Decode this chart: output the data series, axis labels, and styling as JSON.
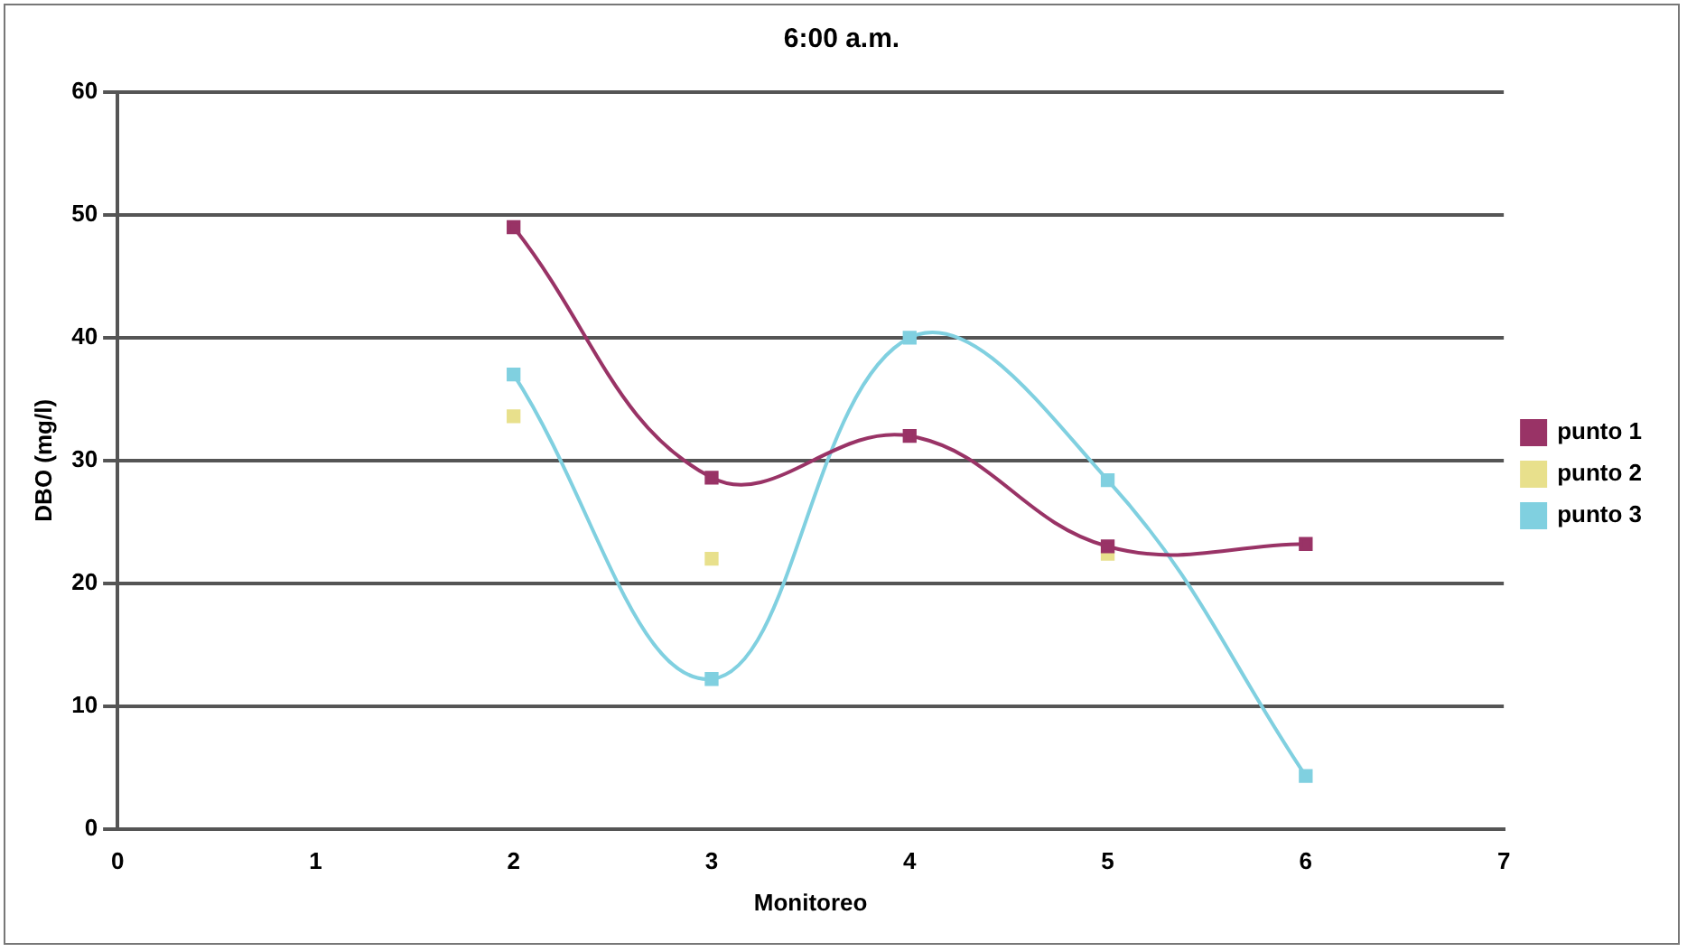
{
  "chart_data": {
    "type": "line",
    "title": "6:00 a.m.",
    "xlabel": "Monitoreo",
    "ylabel": "DBO (mg/l)",
    "x": [
      2,
      3,
      4,
      5,
      6
    ],
    "series": [
      {
        "name": "punto 1",
        "color": "#993366",
        "values": [
          49,
          28.6,
          32,
          23,
          23.2
        ]
      },
      {
        "name": "punto 2",
        "type": "scatter",
        "color": "#e8e08c",
        "x": [
          2,
          3,
          4,
          5
        ],
        "values": [
          33.6,
          22,
          null,
          22.4
        ]
      },
      {
        "name": "punto 3",
        "color": "#80d0e0",
        "values": [
          37,
          12.2,
          40,
          28.4,
          4.3
        ]
      }
    ],
    "xlim": [
      0,
      7
    ],
    "xticks": [
      0,
      1,
      2,
      3,
      4,
      5,
      6,
      7
    ],
    "ylim": [
      0,
      60
    ],
    "yticks": [
      0,
      10,
      20,
      30,
      40,
      50,
      60
    ],
    "grid": "y",
    "legend": "right",
    "marker": "square"
  }
}
